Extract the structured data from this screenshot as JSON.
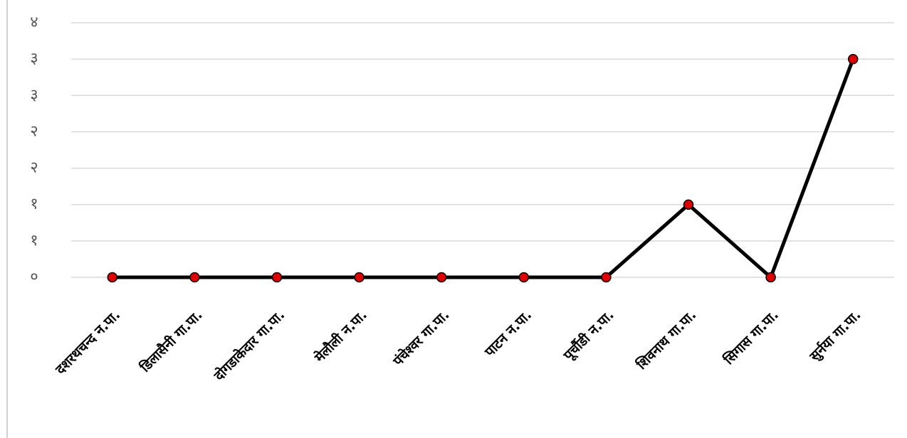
{
  "chart_data": {
    "type": "line",
    "categories": [
      "दशरथचन्द न.पा.",
      "डिलासैनी गा.पा.",
      "दोगडाकेदार गा.पा.",
      "मेलौली न.पा.",
      "पंचेश्वर गा.पा.",
      "पाटन न.पा.",
      "पूर्चौडी न.पा.",
      "शिवनाथ गा.पा.",
      "सिगास गा.पा.",
      "सुर्नया गा.पा."
    ],
    "series": [
      {
        "color": "#000000",
        "marker_color": "#e00000",
        "values": [
          0,
          0,
          0,
          0,
          0,
          0,
          0,
          1,
          0,
          3
        ]
      }
    ],
    "ylim": [
      0,
      3.5
    ],
    "yticks": [
      {
        "value": 0,
        "label": "०"
      },
      {
        "value": 0.5,
        "label": "१"
      },
      {
        "value": 1,
        "label": "१"
      },
      {
        "value": 1.5,
        "label": "२"
      },
      {
        "value": 2,
        "label": "२"
      },
      {
        "value": 2.5,
        "label": "३"
      },
      {
        "value": 3,
        "label": "३"
      },
      {
        "value": 3.5,
        "label": "४"
      }
    ],
    "grid": true
  }
}
